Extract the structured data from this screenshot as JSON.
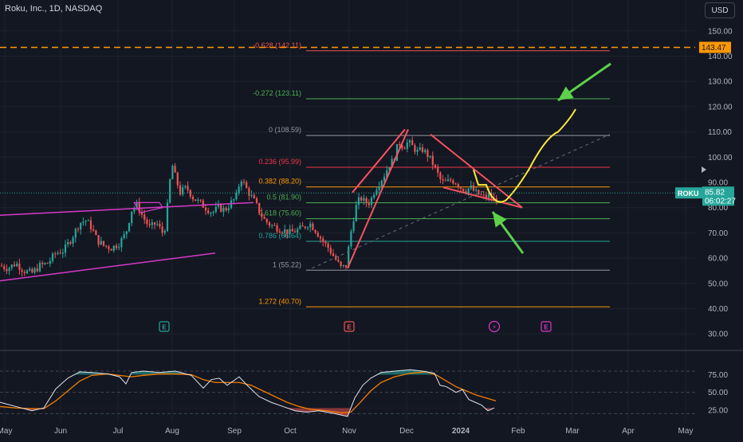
{
  "header": {
    "title": "Roku, Inc., 1D, NASDAQ",
    "currency": "USD"
  },
  "symbol_label": "ROKU",
  "last_price": "85.82",
  "countdown": "06:02:27",
  "alert_price": "143.47",
  "colors": {
    "background": "#131722",
    "grid": "#1e222d",
    "up": "#26a69a",
    "down": "#ef5350",
    "fib_neg": "#ef5350",
    "fib_green": "#4caf50",
    "fib_gray": "#9598a1",
    "fib_red": "#f23645",
    "fib_orange": "#ff9800",
    "fib_teal": "#26a69a",
    "drawing_red": "#f7525f",
    "drawing_yellow": "#ffe93b",
    "arrow_green": "#5ed14b",
    "trendline_magenta": "#d63ac8",
    "alert_orange": "#ff9800",
    "stoch_k": "#e0e3eb",
    "stoch_d": "#f57c00"
  },
  "chart_data": {
    "type": "candlestick",
    "price_axis": {
      "ticks": [
        "150.00",
        "140.00",
        "130.00",
        "120.00",
        "110.00",
        "100.00",
        "90.00",
        "80.00",
        "70.00",
        "60.00",
        "50.00",
        "40.00",
        "30.00"
      ],
      "range": [
        26,
        154
      ]
    },
    "time_axis": {
      "labels": [
        "May",
        "Jun",
        "Jul",
        "Aug",
        "Sep",
        "Oct",
        "Nov",
        "Dec",
        "2024",
        "Feb",
        "Mar",
        "Apr",
        "May"
      ]
    },
    "fib_levels": [
      {
        "label": "-0.628 (142.11)",
        "ratio": -0.628,
        "price": 142.11,
        "color": "fib_neg"
      },
      {
        "label": "-0.272 (123.11)",
        "ratio": -0.272,
        "price": 123.11,
        "color": "fib_green"
      },
      {
        "label": "0 (108.59)",
        "ratio": 0,
        "price": 108.59,
        "color": "fib_gray"
      },
      {
        "label": "0.236 (95.99)",
        "ratio": 0.236,
        "price": 95.99,
        "color": "fib_red"
      },
      {
        "label": "0.382 (88.20)",
        "ratio": 0.382,
        "price": 88.2,
        "color": "fib_orange"
      },
      {
        "label": "0.5 (81.90)",
        "ratio": 0.5,
        "price": 81.9,
        "color": "fib_green"
      },
      {
        "label": "0.618 (75.60)",
        "ratio": 0.618,
        "price": 75.6,
        "color": "fib_green"
      },
      {
        "label": "0.786 (66.64)",
        "ratio": 0.786,
        "price": 66.64,
        "color": "fib_teal"
      },
      {
        "label": "1 (55.22)",
        "ratio": 1,
        "price": 55.22,
        "color": "fib_gray"
      },
      {
        "label": "1.272 (40.70)",
        "ratio": 1.272,
        "price": 40.7,
        "color": "fib_orange"
      }
    ],
    "price_path": [
      [
        0,
        57
      ],
      [
        10,
        56
      ],
      [
        20,
        58
      ],
      [
        30,
        55
      ],
      [
        40,
        54
      ],
      [
        50,
        57
      ],
      [
        60,
        58
      ],
      [
        70,
        62
      ],
      [
        80,
        63
      ],
      [
        90,
        68
      ],
      [
        100,
        74
      ],
      [
        108,
        75
      ],
      [
        115,
        72
      ],
      [
        122,
        67
      ],
      [
        130,
        65
      ],
      [
        140,
        64
      ],
      [
        150,
        66
      ],
      [
        158,
        70
      ],
      [
        165,
        79
      ],
      [
        172,
        81
      ],
      [
        180,
        76
      ],
      [
        188,
        72
      ],
      [
        196,
        74
      ],
      [
        204,
        70
      ],
      [
        208,
        73
      ],
      [
        212,
        88
      ],
      [
        216,
        97
      ],
      [
        220,
        92
      ],
      [
        226,
        86
      ],
      [
        234,
        88
      ],
      [
        242,
        84
      ],
      [
        250,
        82
      ],
      [
        258,
        80
      ],
      [
        266,
        78
      ],
      [
        274,
        80
      ],
      [
        282,
        79
      ],
      [
        290,
        82
      ],
      [
        296,
        84
      ],
      [
        302,
        92
      ],
      [
        308,
        88
      ],
      [
        314,
        85
      ],
      [
        320,
        82
      ],
      [
        326,
        78
      ],
      [
        332,
        75
      ],
      [
        340,
        73
      ],
      [
        348,
        72
      ],
      [
        356,
        71
      ],
      [
        364,
        70
      ],
      [
        372,
        71
      ],
      [
        380,
        72
      ],
      [
        388,
        74
      ],
      [
        396,
        71
      ],
      [
        404,
        67
      ],
      [
        412,
        64
      ],
      [
        420,
        60
      ],
      [
        428,
        56
      ],
      [
        434,
        57
      ],
      [
        440,
        70
      ],
      [
        446,
        80
      ],
      [
        452,
        84
      ],
      [
        458,
        82
      ],
      [
        464,
        82
      ],
      [
        470,
        87
      ],
      [
        476,
        90
      ],
      [
        482,
        93
      ],
      [
        488,
        97
      ],
      [
        494,
        99
      ],
      [
        500,
        106
      ],
      [
        506,
        104
      ],
      [
        512,
        106
      ],
      [
        518,
        104
      ],
      [
        524,
        102
      ],
      [
        530,
        103
      ],
      [
        536,
        101
      ],
      [
        542,
        98
      ],
      [
        548,
        94
      ],
      [
        554,
        90
      ],
      [
        560,
        90
      ],
      [
        566,
        91
      ],
      [
        572,
        90
      ],
      [
        578,
        88
      ],
      [
        584,
        87
      ],
      [
        590,
        88
      ],
      [
        596,
        86
      ],
      [
        602,
        85
      ],
      [
        608,
        84
      ],
      [
        614,
        85
      ],
      [
        620,
        83
      ],
      [
        626,
        85.8
      ]
    ],
    "stochastic": {
      "ticks": [
        "75.00",
        "50.00",
        "25.00"
      ],
      "range": [
        8,
        98
      ],
      "k": [
        [
          0,
          36
        ],
        [
          20,
          30
        ],
        [
          40,
          24
        ],
        [
          55,
          28
        ],
        [
          70,
          55
        ],
        [
          85,
          70
        ],
        [
          100,
          79
        ],
        [
          115,
          78
        ],
        [
          135,
          76
        ],
        [
          150,
          72
        ],
        [
          158,
          62
        ],
        [
          165,
          78
        ],
        [
          180,
          80
        ],
        [
          200,
          78
        ],
        [
          220,
          80
        ],
        [
          240,
          74
        ],
        [
          255,
          56
        ],
        [
          265,
          68
        ],
        [
          275,
          70
        ],
        [
          285,
          60
        ],
        [
          300,
          72
        ],
        [
          310,
          60
        ],
        [
          325,
          44
        ],
        [
          340,
          36
        ],
        [
          355,
          30
        ],
        [
          370,
          24
        ],
        [
          385,
          22
        ],
        [
          400,
          24
        ],
        [
          420,
          20
        ],
        [
          436,
          16
        ],
        [
          445,
          42
        ],
        [
          455,
          60
        ],
        [
          465,
          70
        ],
        [
          478,
          78
        ],
        [
          495,
          80
        ],
        [
          515,
          82
        ],
        [
          530,
          80
        ],
        [
          545,
          77
        ],
        [
          552,
          60
        ],
        [
          560,
          58
        ],
        [
          572,
          50
        ],
        [
          580,
          54
        ],
        [
          588,
          40
        ],
        [
          596,
          36
        ],
        [
          604,
          32
        ],
        [
          612,
          24
        ],
        [
          620,
          28
        ]
      ],
      "d": [
        [
          0,
          30
        ],
        [
          20,
          28
        ],
        [
          40,
          27
        ],
        [
          55,
          27
        ],
        [
          70,
          38
        ],
        [
          85,
          52
        ],
        [
          100,
          66
        ],
        [
          115,
          74
        ],
        [
          135,
          76
        ],
        [
          150,
          74
        ],
        [
          165,
          72
        ],
        [
          180,
          74
        ],
        [
          200,
          76
        ],
        [
          220,
          76
        ],
        [
          240,
          75
        ],
        [
          255,
          68
        ],
        [
          270,
          64
        ],
        [
          285,
          64
        ],
        [
          300,
          64
        ],
        [
          315,
          60
        ],
        [
          330,
          52
        ],
        [
          345,
          44
        ],
        [
          360,
          36
        ],
        [
          375,
          30
        ],
        [
          390,
          26
        ],
        [
          410,
          24
        ],
        [
          428,
          21
        ],
        [
          440,
          22
        ],
        [
          452,
          36
        ],
        [
          465,
          52
        ],
        [
          478,
          64
        ],
        [
          495,
          72
        ],
        [
          515,
          77
        ],
        [
          535,
          79
        ],
        [
          548,
          74
        ],
        [
          560,
          66
        ],
        [
          572,
          58
        ],
        [
          585,
          52
        ],
        [
          598,
          46
        ],
        [
          610,
          42
        ],
        [
          622,
          38
        ]
      ]
    }
  }
}
